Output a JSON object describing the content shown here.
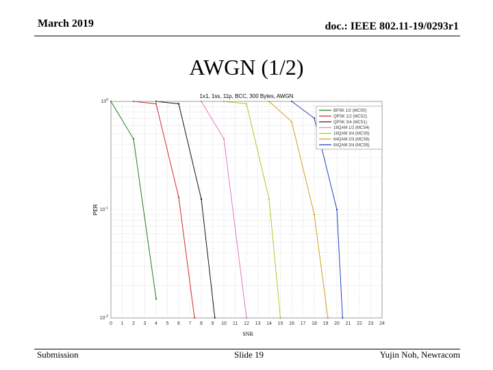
{
  "header": {
    "date": "March 2019",
    "doc": "doc.: IEEE 802.11-19/0293r1"
  },
  "slide": {
    "title": "AWGN (1/2)"
  },
  "footer": {
    "left": "Submission",
    "center": "Slide 19",
    "right": "Yujin Noh, Newracom"
  },
  "chart_data": {
    "type": "line",
    "title": "1x1, 1ss, 11p, BCC, 300 Bytes, AWGN",
    "xlabel": "SNR",
    "ylabel": "PER",
    "xlim": [
      0,
      24
    ],
    "ylim": [
      0.01,
      1
    ],
    "yscale": "log",
    "x_ticks": [
      0,
      1,
      2,
      3,
      4,
      5,
      6,
      7,
      8,
      9,
      10,
      11,
      12,
      13,
      14,
      15,
      16,
      17,
      18,
      19,
      20,
      21,
      22,
      23,
      24
    ],
    "y_ticks": [
      {
        "value": 1,
        "base": "10",
        "exp": "0"
      },
      {
        "value": 0.1,
        "base": "10",
        "exp": "-1"
      },
      {
        "value": 0.01,
        "base": "10",
        "exp": "-2"
      }
    ],
    "grid": true,
    "legend_position": "top-right",
    "series": [
      {
        "name": "BPSK 1/2 (MCS0)",
        "color": "#1f7a1f",
        "x": [
          0,
          2,
          4
        ],
        "y": [
          1,
          0.45,
          0.015
        ]
      },
      {
        "name": "QPSK 1/2 (MCS2)",
        "color": "#d62728",
        "x": [
          2,
          4,
          6,
          7.4
        ],
        "y": [
          1,
          0.95,
          0.13,
          0.01
        ]
      },
      {
        "name": "QPSK 3/4 (MCS1)",
        "color": "#111111",
        "x": [
          4,
          6,
          8,
          9.2
        ],
        "y": [
          1,
          0.95,
          0.125,
          0.01
        ]
      },
      {
        "name": "16QAM 1/2 (MCS4)",
        "color": "#e377c2",
        "x": [
          8,
          10,
          12
        ],
        "y": [
          1,
          0.45,
          0.01
        ]
      },
      {
        "name": "16QAM 3/4 (MCS5)",
        "color": "#aacc22",
        "x": [
          10,
          12,
          14,
          15
        ],
        "y": [
          1,
          0.95,
          0.125,
          0.01
        ]
      },
      {
        "name": "64QAM 2/3 (MCS6)",
        "color": "#d4a017",
        "x": [
          14,
          16,
          18,
          19.2
        ],
        "y": [
          1,
          0.65,
          0.09,
          0.01
        ]
      },
      {
        "name": "64QAM 3/4 (MCS6)",
        "color": "#1f3fbf",
        "x": [
          16,
          18,
          20,
          20.5
        ],
        "y": [
          1,
          0.7,
          0.1,
          0.01
        ]
      }
    ]
  }
}
